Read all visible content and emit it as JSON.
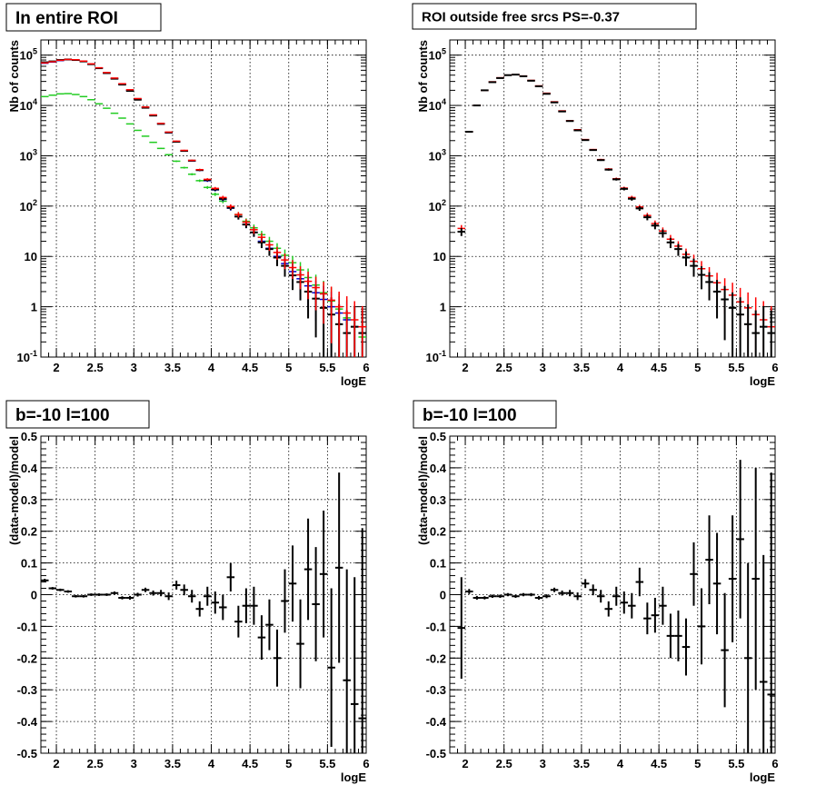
{
  "chart_data": [
    {
      "id": "spectrum-all",
      "type": "scatter",
      "title": "In entire ROI",
      "xlabel": "logE",
      "ylabel": "Nb of counts",
      "yscale": "log",
      "xlim": [
        1.8,
        6.0
      ],
      "ylim": [
        0.1,
        200000
      ],
      "xticks": [
        "2",
        "2.5",
        "3",
        "3.5",
        "4",
        "4.5",
        "5",
        "5.5",
        "6"
      ],
      "yticks": [
        "10^{-1}",
        "1",
        "10",
        "10^{2}",
        "10^{3}",
        "10^{4}",
        "10^{5}"
      ],
      "grid": true,
      "bin_width": 0.1,
      "series": [
        {
          "color": "#000000",
          "x": [
            1.85,
            1.95,
            2.05,
            2.15,
            2.25,
            2.35,
            2.45,
            2.55,
            2.65,
            2.75,
            2.85,
            2.95,
            3.05,
            3.15,
            3.25,
            3.35,
            3.45,
            3.55,
            3.65,
            3.75,
            3.85,
            3.95,
            4.05,
            4.15,
            4.25,
            4.35,
            4.45,
            4.55,
            4.65,
            4.75,
            4.85,
            4.95,
            5.05,
            5.15,
            5.25,
            5.35,
            5.45,
            5.55,
            5.65,
            5.75,
            5.85,
            5.95
          ],
          "y": [
            72000,
            75000,
            80000,
            82000,
            80000,
            75000,
            66000,
            55000,
            44000,
            34000,
            26000,
            19500,
            13000,
            9000,
            6300,
            4300,
            2900,
            1900,
            1250,
            800,
            520,
            330,
            215,
            140,
            93,
            62,
            43,
            30,
            19,
            14,
            9.5,
            6.5,
            4.2,
            3.1,
            2.0,
            1.45,
            0.95,
            0.7,
            0.45,
            0.3,
            0.4,
            0.3
          ]
        },
        {
          "color": "#0000cc",
          "x": [
            1.85,
            1.95,
            2.05,
            2.15,
            2.25,
            2.35,
            2.45,
            2.55,
            2.65,
            2.75,
            2.85,
            2.95,
            3.05,
            3.15,
            3.25,
            3.35,
            3.45,
            3.55,
            3.65,
            3.75,
            3.85,
            3.95,
            4.05,
            4.15,
            4.25,
            4.35,
            4.45,
            4.55,
            4.65,
            4.75,
            4.85,
            4.95,
            5.05,
            5.15,
            5.25,
            5.35,
            5.45,
            5.55,
            5.65,
            5.75,
            5.85,
            5.95
          ],
          "y": [
            69000,
            73000,
            78000,
            81000,
            80000,
            75000,
            66500,
            55000,
            44000,
            34000,
            26500,
            20000,
            13300,
            9100,
            6300,
            4300,
            2850,
            1880,
            1240,
            790,
            515,
            320,
            210,
            136,
            91,
            62,
            43,
            30,
            20,
            14.5,
            10,
            7.2,
            5,
            3.6,
            2.6,
            1.9,
            1.4,
            1.0,
            0.75,
            0.55,
            0.4,
            0.3
          ]
        },
        {
          "color": "#ff0000",
          "x": [
            1.85,
            1.95,
            2.05,
            2.15,
            2.25,
            2.35,
            2.45,
            2.55,
            2.65,
            2.75,
            2.85,
            2.95,
            3.05,
            3.15,
            3.25,
            3.35,
            3.45,
            3.55,
            3.65,
            3.75,
            3.85,
            3.95,
            4.05,
            4.15,
            4.25,
            4.35,
            4.45,
            4.55,
            4.65,
            4.75,
            4.85,
            4.95,
            5.05,
            5.15,
            5.25,
            5.35,
            5.45,
            5.55,
            5.65,
            5.75,
            5.85,
            5.95
          ],
          "y": [
            70000,
            74000,
            79000,
            82000,
            81000,
            76000,
            67000,
            56000,
            45000,
            35000,
            27000,
            20500,
            13700,
            9300,
            6500,
            4400,
            2950,
            1950,
            1280,
            810,
            530,
            340,
            225,
            148,
            98,
            68,
            48,
            34,
            24,
            17,
            12,
            8.5,
            6,
            4.3,
            3.2,
            2.4,
            1.8,
            1.35,
            1.0,
            0.75,
            0.55,
            0.4
          ]
        },
        {
          "color": "#22cc22",
          "x": [
            1.85,
            1.95,
            2.05,
            2.15,
            2.25,
            2.35,
            2.45,
            2.55,
            2.65,
            2.75,
            2.85,
            2.95,
            3.05,
            3.15,
            3.25,
            3.35,
            3.45,
            3.55,
            3.65,
            3.75,
            3.85,
            3.95,
            4.05,
            4.15,
            4.25,
            4.35,
            4.45,
            4.55,
            4.65,
            4.75,
            4.85,
            4.95,
            5.05,
            5.15,
            5.25,
            5.35,
            5.45,
            5.55,
            5.65,
            5.75,
            5.85,
            5.95
          ],
          "y": [
            15000,
            16000,
            17000,
            17200,
            16500,
            15000,
            13000,
            10800,
            8800,
            7000,
            5600,
            4300,
            3200,
            2450,
            1850,
            1400,
            1050,
            780,
            580,
            430,
            320,
            235,
            172,
            125,
            92,
            68,
            50,
            37,
            27,
            20,
            14.5,
            10.5,
            7.5,
            5.4,
            3.8,
            2.7,
            1.9,
            1.3,
            0.9,
            0.6,
            0.4,
            0.25
          ]
        }
      ]
    },
    {
      "id": "spectrum-outside",
      "type": "scatter",
      "title": "ROI outside free srcs PS=-0.37",
      "xlabel": "logE",
      "ylabel": "Nb of counts",
      "yscale": "log",
      "xlim": [
        1.8,
        6.0
      ],
      "ylim": [
        0.1,
        200000
      ],
      "xticks": [
        "2",
        "2.5",
        "3",
        "3.5",
        "4",
        "4.5",
        "5",
        "5.5",
        "6"
      ],
      "yticks": [
        "10^{-1}",
        "1",
        "10",
        "10^{2}",
        "10^{3}",
        "10^{4}",
        "10^{5}"
      ],
      "grid": true,
      "bin_width": 0.1,
      "series": [
        {
          "color": "#000000",
          "x": [
            1.95,
            2.05,
            2.15,
            2.25,
            2.35,
            2.45,
            2.55,
            2.65,
            2.75,
            2.85,
            2.95,
            3.05,
            3.15,
            3.25,
            3.35,
            3.45,
            3.55,
            3.65,
            3.75,
            3.85,
            3.95,
            4.05,
            4.15,
            4.25,
            4.35,
            4.45,
            4.55,
            4.65,
            4.75,
            4.85,
            4.95,
            5.05,
            5.15,
            5.25,
            5.35,
            5.45,
            5.55,
            5.65,
            5.75,
            5.85,
            5.95
          ],
          "y": [
            31,
            3000,
            10000,
            20000,
            29000,
            35000,
            40000,
            41000,
            38000,
            31000,
            24000,
            17000,
            11500,
            7600,
            4900,
            3200,
            2050,
            1300,
            820,
            530,
            340,
            220,
            140,
            90,
            60,
            41,
            29,
            19,
            14,
            9.5,
            6.5,
            4.3,
            3.1,
            2.0,
            1.4,
            0.95,
            0.7,
            0.45,
            0.3,
            0.4,
            0.3
          ]
        },
        {
          "color": "#ff0000",
          "x": [
            1.95,
            2.05,
            2.15,
            2.25,
            2.35,
            2.45,
            2.55,
            2.65,
            2.75,
            2.85,
            2.95,
            3.05,
            3.15,
            3.25,
            3.35,
            3.45,
            3.55,
            3.65,
            3.75,
            3.85,
            3.95,
            4.05,
            4.15,
            4.25,
            4.35,
            4.45,
            4.55,
            4.65,
            4.75,
            4.85,
            4.95,
            5.05,
            5.15,
            5.25,
            5.35,
            5.45,
            5.55,
            5.65,
            5.75,
            5.85,
            5.95
          ],
          "y": [
            36,
            3000,
            10000,
            20000,
            29500,
            35500,
            40000,
            41000,
            38500,
            31500,
            24500,
            17500,
            11800,
            7800,
            5000,
            3300,
            2100,
            1330,
            840,
            545,
            350,
            228,
            148,
            96,
            65,
            45,
            32,
            22,
            16,
            11,
            8,
            5.7,
            4.1,
            3.0,
            2.2,
            1.7,
            1.25,
            0.95,
            0.7,
            0.55,
            0.4
          ]
        }
      ]
    },
    {
      "id": "residual-all",
      "type": "scatter",
      "title": "b=-10 l=100",
      "xlabel": "logE",
      "ylabel": "(data-model)/model",
      "xlim": [
        1.8,
        6.0
      ],
      "ylim": [
        -0.5,
        0.5
      ],
      "xticks": [
        "2",
        "2.5",
        "3",
        "3.5",
        "4",
        "4.5",
        "5",
        "5.5",
        "6"
      ],
      "yticks": [
        "-0.5",
        "-0.4",
        "-0.3",
        "-0.2",
        "-0.1",
        "0",
        "0.1",
        "0.2",
        "0.3",
        "0.4",
        "0.5"
      ],
      "grid": true,
      "bin_width": 0.1,
      "x": [
        1.85,
        1.95,
        2.05,
        2.15,
        2.25,
        2.35,
        2.45,
        2.55,
        2.65,
        2.75,
        2.85,
        2.95,
        3.05,
        3.15,
        3.25,
        3.35,
        3.45,
        3.55,
        3.65,
        3.75,
        3.85,
        3.95,
        4.05,
        4.15,
        4.25,
        4.35,
        4.45,
        4.55,
        4.65,
        4.75,
        4.85,
        4.95,
        5.05,
        5.15,
        5.25,
        5.35,
        5.45,
        5.55,
        5.65,
        5.75,
        5.85,
        5.95
      ],
      "y": [
        0.045,
        0.02,
        0.015,
        0.01,
        -0.005,
        -0.005,
        0.0,
        0.0,
        0.0,
        0.005,
        -0.01,
        -0.01,
        0.0,
        0.015,
        0.005,
        0.005,
        -0.005,
        0.03,
        0.015,
        -0.005,
        -0.045,
        -0.005,
        -0.025,
        -0.04,
        0.055,
        -0.085,
        -0.035,
        -0.035,
        -0.135,
        -0.095,
        -0.2,
        -0.02,
        0.035,
        -0.155,
        0.08,
        -0.03,
        0.065,
        -0.23,
        0.085,
        -0.27,
        -0.345,
        -0.39
      ],
      "err": [
        0.005,
        0.004,
        0.004,
        0.004,
        0.004,
        0.004,
        0.004,
        0.004,
        0.004,
        0.005,
        0.005,
        0.006,
        0.006,
        0.007,
        0.008,
        0.01,
        0.012,
        0.014,
        0.017,
        0.02,
        0.024,
        0.03,
        0.035,
        0.04,
        0.045,
        0.05,
        0.055,
        0.06,
        0.07,
        0.08,
        0.09,
        0.1,
        0.12,
        0.14,
        0.16,
        0.18,
        0.2,
        0.25,
        0.3,
        0.35,
        0.4,
        0.6
      ]
    },
    {
      "id": "residual-outside",
      "type": "scatter",
      "title": "b=-10 l=100",
      "xlabel": "logE",
      "ylabel": "(data-model)/model",
      "xlim": [
        1.8,
        6.0
      ],
      "ylim": [
        -0.5,
        0.5
      ],
      "xticks": [
        "2",
        "2.5",
        "3",
        "3.5",
        "4",
        "4.5",
        "5",
        "5.5",
        "6"
      ],
      "yticks": [
        "-0.5",
        "-0.4",
        "-0.3",
        "-0.2",
        "-0.1",
        "0",
        "0.1",
        "0.2",
        "0.3",
        "0.4",
        "0.5"
      ],
      "grid": true,
      "bin_width": 0.1,
      "x": [
        1.95,
        2.05,
        2.15,
        2.25,
        2.35,
        2.45,
        2.55,
        2.65,
        2.75,
        2.85,
        2.95,
        3.05,
        3.15,
        3.25,
        3.35,
        3.45,
        3.55,
        3.65,
        3.75,
        3.85,
        3.95,
        4.05,
        4.15,
        4.25,
        4.35,
        4.45,
        4.55,
        4.65,
        4.75,
        4.85,
        4.95,
        5.05,
        5.15,
        5.25,
        5.35,
        5.45,
        5.55,
        5.65,
        5.75,
        5.85,
        5.95
      ],
      "y": [
        -0.105,
        0.01,
        -0.01,
        -0.01,
        -0.005,
        -0.005,
        0.0,
        -0.005,
        0.0,
        0.0,
        -0.01,
        -0.005,
        0.015,
        0.005,
        0.005,
        -0.005,
        0.035,
        0.015,
        -0.005,
        -0.045,
        -0.005,
        -0.025,
        -0.035,
        0.04,
        -0.075,
        -0.065,
        -0.035,
        -0.13,
        -0.13,
        -0.165,
        0.065,
        -0.1,
        0.11,
        0.035,
        -0.175,
        0.05,
        0.175,
        -0.2,
        0.05,
        -0.275,
        -0.315
      ],
      "err": [
        0.16,
        0.008,
        0.006,
        0.005,
        0.005,
        0.005,
        0.005,
        0.005,
        0.005,
        0.005,
        0.006,
        0.006,
        0.007,
        0.008,
        0.01,
        0.012,
        0.014,
        0.017,
        0.02,
        0.024,
        0.03,
        0.035,
        0.04,
        0.045,
        0.05,
        0.055,
        0.06,
        0.07,
        0.08,
        0.09,
        0.1,
        0.12,
        0.14,
        0.16,
        0.18,
        0.2,
        0.25,
        0.3,
        0.35,
        0.4,
        0.7
      ]
    }
  ]
}
